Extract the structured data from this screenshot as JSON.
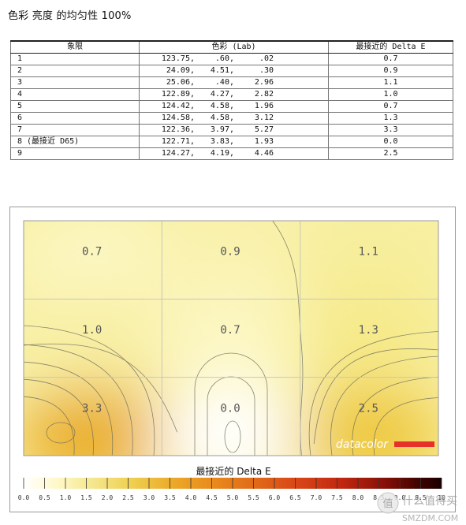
{
  "page": {
    "title": "色彩 亮度 的均匀性 100%"
  },
  "table": {
    "headers": [
      "象限",
      "色彩 (Lab)",
      "最接近的 Delta E"
    ],
    "rows": [
      {
        "quadrant": "1",
        "L": "123.75,",
        "a": ".60,",
        "b": ".02",
        "delta_e": "0.7"
      },
      {
        "quadrant": "2",
        "L": "24.09,",
        "a": "4.51,",
        "b": ".30",
        "delta_e": "0.9"
      },
      {
        "quadrant": "3",
        "L": "25.06,",
        "a": ".40,",
        "b": "2.96",
        "delta_e": "1.1"
      },
      {
        "quadrant": "4",
        "L": "122.89,",
        "a": "4.27,",
        "b": "2.82",
        "delta_e": "1.0"
      },
      {
        "quadrant": "5",
        "L": "124.42,",
        "a": "4.58,",
        "b": "1.96",
        "delta_e": "0.7"
      },
      {
        "quadrant": "6",
        "L": "124.58,",
        "a": "4.58,",
        "b": "3.12",
        "delta_e": "1.3"
      },
      {
        "quadrant": "7",
        "L": "122.36,",
        "a": "3.97,",
        "b": "5.27",
        "delta_e": "3.3"
      },
      {
        "quadrant": "8 (最接近 D65)",
        "L": "122.71,",
        "a": "3.83,",
        "b": "1.93",
        "delta_e": "0.0"
      },
      {
        "quadrant": "9",
        "L": "124.27,",
        "a": "4.19,",
        "b": "4.46",
        "delta_e": "2.5"
      }
    ]
  },
  "chart_data": {
    "type": "heatmap",
    "grid": {
      "rows": 3,
      "cols": 3
    },
    "values": [
      [
        0.7,
        0.9,
        1.1
      ],
      [
        1.0,
        0.7,
        1.3
      ],
      [
        3.3,
        0.0,
        2.5
      ]
    ],
    "value_labels": [
      [
        "0.7",
        "0.9",
        "1.1"
      ],
      [
        "1.0",
        "0.7",
        "1.3"
      ],
      [
        "3.3",
        "0.0",
        "2.5"
      ]
    ],
    "legend_title": "最接近的 Delta E",
    "legend_ticks": [
      "0.0",
      "0.5",
      "1.0",
      "1.5",
      "2.0",
      "2.5",
      "3.0",
      "3.5",
      "4.0",
      "4.5",
      "5.0",
      "5.5",
      "6.0",
      "6.5",
      "7.0",
      "7.5",
      "8.0",
      "8.5",
      "9.0",
      "9.5",
      "10"
    ],
    "legend_range": [
      0,
      10
    ],
    "logo_text": "datacolor",
    "colors": {
      "low": "#ffffff",
      "mid": "#f0e060",
      "high": "#e8a020",
      "max": "#1a0000",
      "logo_bar": "#e8302a"
    }
  },
  "watermark": {
    "brand": "什么值得买",
    "domain": "SMZDM.COM"
  }
}
